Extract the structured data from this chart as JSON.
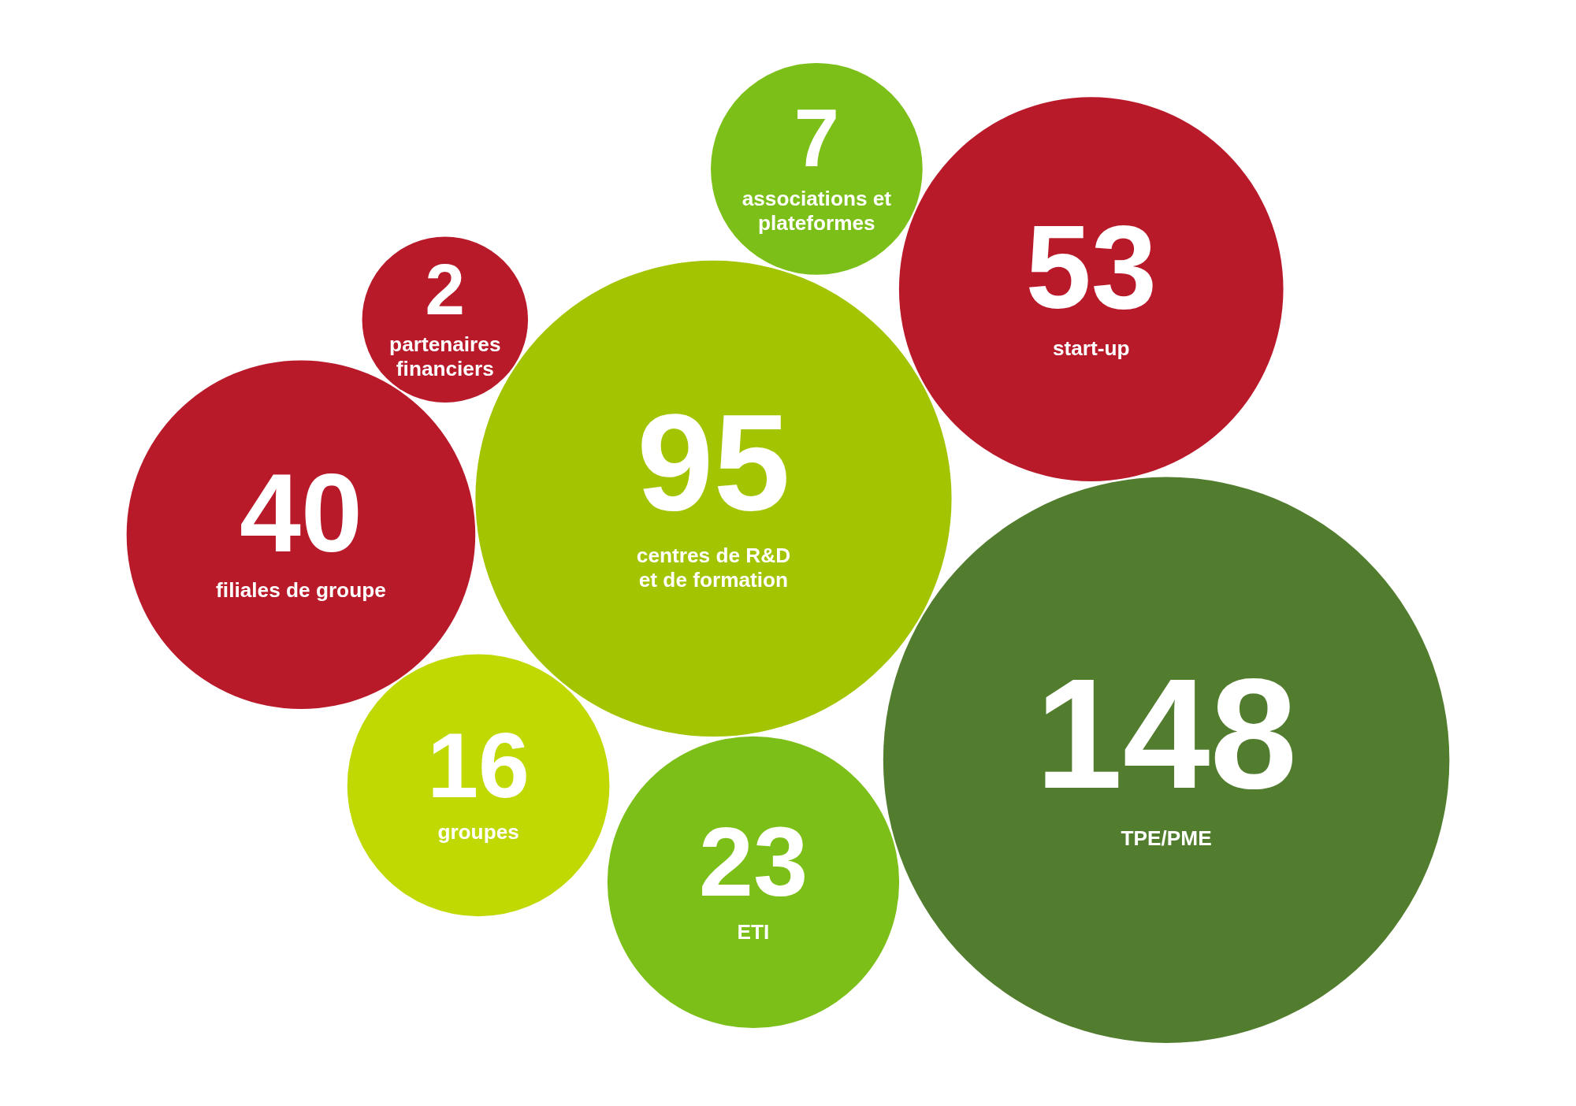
{
  "chart_data": {
    "type": "other",
    "categories": [
      "partenaires\nfinanciers",
      "centres de R&D\net de formation",
      "associations et\nplateformes",
      "filiales de groupe",
      "groupes",
      "TPE/PME",
      "ETI",
      "start-up"
    ],
    "values": [
      2,
      95,
      7,
      40,
      16,
      148,
      23,
      53
    ],
    "colors": [
      "#b91a2a",
      "#a3c400",
      "#7bbf18",
      "#b91a2a",
      "#c0d903",
      "#527d2e",
      "#7bbf18",
      "#b91a2a"
    ],
    "data_labels": true
  }
}
